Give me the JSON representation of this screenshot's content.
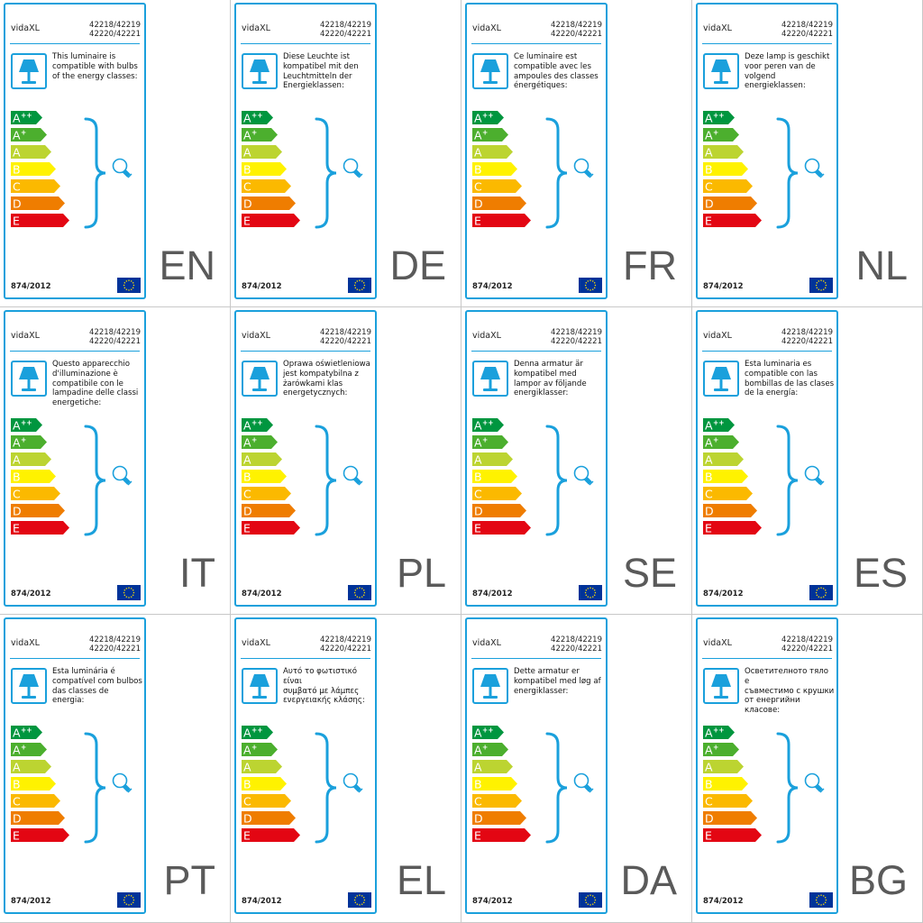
{
  "brand": "vidaXL",
  "model_line1": "42218/42219",
  "model_line2": "42220/42221",
  "regulation": "874/2012",
  "energy_classes": [
    {
      "label": "A",
      "sup": "++",
      "color": "#00963f"
    },
    {
      "label": "A",
      "sup": "+",
      "color": "#4caf2e"
    },
    {
      "label": "A",
      "sup": "",
      "color": "#bcd431"
    },
    {
      "label": "B",
      "sup": "",
      "color": "#fff200"
    },
    {
      "label": "C",
      "sup": "",
      "color": "#fbb900"
    },
    {
      "label": "D",
      "sup": "",
      "color": "#ef7d00"
    },
    {
      "label": "E",
      "sup": "",
      "color": "#e30613"
    }
  ],
  "colors": {
    "accent": "#1aa0dc",
    "eu_blue": "#003399",
    "eu_star": "#ffdd00",
    "language_code": "#5a5a5a"
  },
  "icons": {
    "lamp": "table-lamp-icon",
    "bulb": "light-bulb-icon",
    "brace": "curly-brace",
    "flag": "eu-flag-icon"
  },
  "labels": [
    {
      "lang": "EN",
      "text": [
        "This luminaire is",
        "compatible with bulbs",
        "of the energy classes:"
      ]
    },
    {
      "lang": "DE",
      "text": [
        "Diese Leuchte ist",
        "kompatibel mit den",
        "Leuchtmitteln der",
        "Energieklassen:"
      ]
    },
    {
      "lang": "FR",
      "text": [
        "Ce luminaire est",
        "compatible avec les",
        "ampoules des classes",
        "énergétiques:"
      ]
    },
    {
      "lang": "NL",
      "text": [
        "Deze lamp is geschikt",
        "voor peren van de",
        "volgend energieklassen:"
      ]
    },
    {
      "lang": "IT",
      "text": [
        "Questo apparecchio",
        "d'illuminazione è",
        "compatibile con le",
        "lampadine delle classi",
        "energetiche:"
      ]
    },
    {
      "lang": "PL",
      "text": [
        "Oprawa oświetleniowa",
        "jest kompatybilna z",
        "żarówkami klas",
        "energetycznych:"
      ]
    },
    {
      "lang": "SE",
      "text": [
        "Denna armatur är",
        "kompatibel med",
        "lampor av följande",
        "energiklasser:"
      ]
    },
    {
      "lang": "ES",
      "text": [
        "Esta luminaria es",
        "compatible con las",
        "bombillas de las clases",
        "de la energía:"
      ]
    },
    {
      "lang": "PT",
      "text": [
        "Esta luminária é",
        "compatível com bulbos",
        "das classes de energia:"
      ]
    },
    {
      "lang": "EL",
      "text": [
        "Αυτό το φωτιστικό είναι",
        "συμβατό με λάμπες",
        "ενεργειακής κλάσης:"
      ]
    },
    {
      "lang": "DA",
      "text": [
        "Dette armatur er",
        "kompatibel med løg af",
        "energiklasser:"
      ]
    },
    {
      "lang": "BG",
      "text": [
        "Осветителното тяло е",
        "съвместимо с крушки",
        "от енергийни класове:"
      ]
    }
  ]
}
